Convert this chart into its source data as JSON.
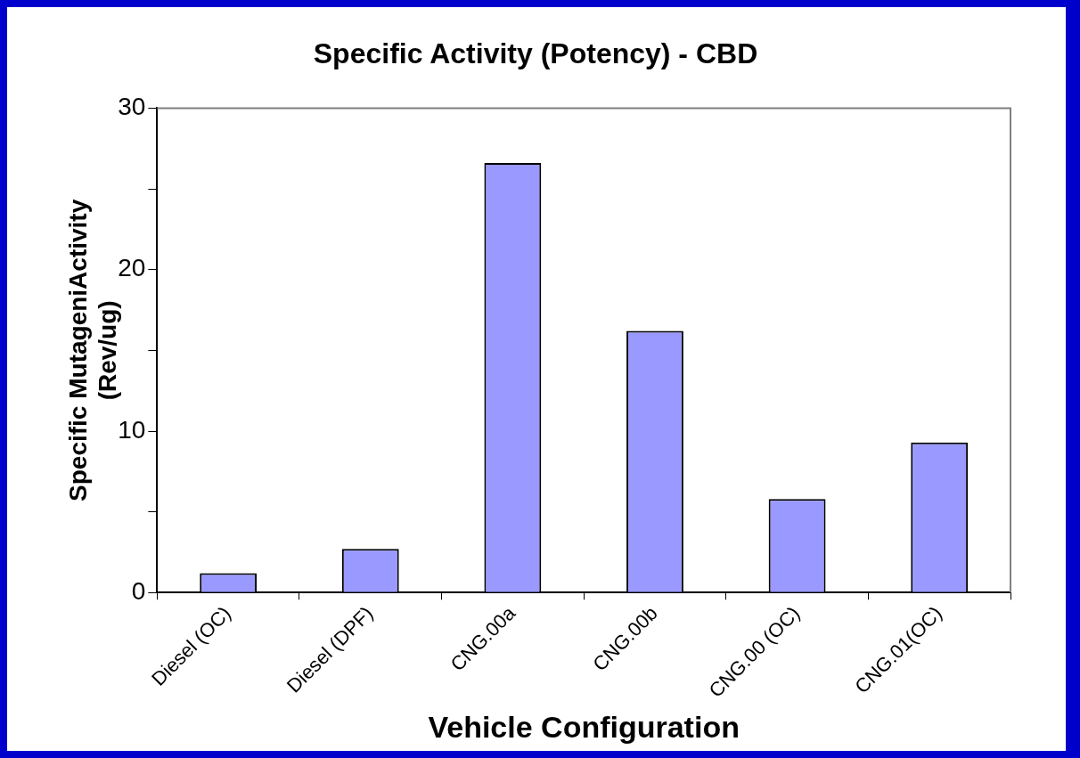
{
  "chart_data": {
    "type": "bar",
    "title": "Specific Activity (Potency) - CBD",
    "xlabel": "Vehicle Configuration",
    "ylabel": "Specific MutageniActivity\n(Rev/ug)",
    "categories": [
      "Diesel (OC)",
      "Diesel (DPF)",
      "CNG.00a",
      "CNG.00b",
      "CNG.00 (OC)",
      "CNG.01(OC)"
    ],
    "values": [
      1.2,
      2.7,
      26.6,
      16.2,
      5.8,
      9.3
    ],
    "color": "#9999ff",
    "ylim": [
      0,
      30
    ],
    "yticks": [
      0,
      {
        "value": 5,
        "label": null
      },
      10,
      {
        "value": 15,
        "label": null
      },
      20,
      {
        "value": 25,
        "label": null
      },
      30
    ]
  }
}
